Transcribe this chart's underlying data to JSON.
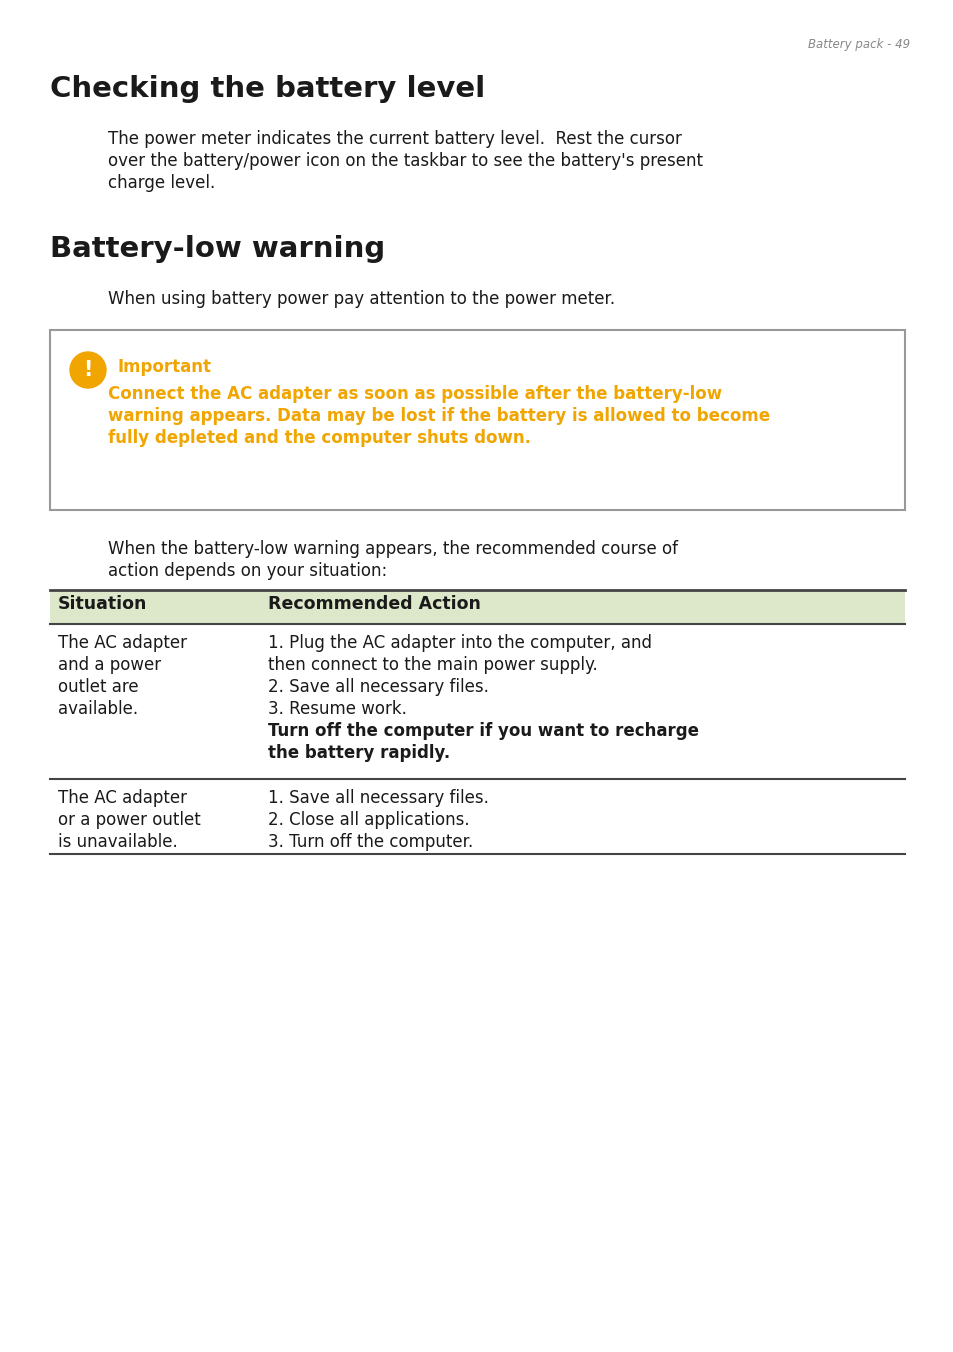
{
  "page_header": "Battery pack - 49",
  "title1": "Checking the battery level",
  "body1_lines": [
    "The power meter indicates the current battery level.  Rest the cursor",
    "over the battery/power icon on the taskbar to see the battery's present",
    "charge level."
  ],
  "title2": "Battery-low warning",
  "body2": "When using battery power pay attention to the power meter.",
  "important_label": "Important",
  "important_line1": "Connect the AC adapter as soon as possible after the battery-low",
  "important_line2": "warning appears. Data may be lost if the battery is allowed to become",
  "important_line3": "fully depleted and the computer shuts down.",
  "body3_line1": "When the battery-low warning appears, the recommended course of",
  "body3_line2": "action depends on your situation:",
  "table_header_col1": "Situation",
  "table_header_col2": "Recommended Action",
  "table_header_bg": "#dde8cb",
  "row1_col1_lines": [
    "The AC adapter",
    "and a power",
    "outlet are",
    "available."
  ],
  "row1_col2_line1": "1. Plug the AC adapter into the computer, and",
  "row1_col2_line2": "then connect to the main power supply.",
  "row1_col2_line3": "2. Save all necessary files.",
  "row1_col2_line4": "3. Resume work.",
  "row1_col2_bold1": "Turn off the computer if you want to recharge",
  "row1_col2_bold2": "the battery rapidly.",
  "row2_col1_lines": [
    "The AC adapter",
    "or a power outlet",
    "is unavailable."
  ],
  "row2_col2_line1": "1. Save all necessary files.",
  "row2_col2_line2": "2. Close all applications.",
  "row2_col2_line3": "3. Turn off the computer.",
  "bg_color": "#ffffff",
  "text_color": "#1a1a1a",
  "orange_color": "#f0a500",
  "gray_color": "#888888",
  "border_color": "#999999",
  "dark_border": "#444444"
}
